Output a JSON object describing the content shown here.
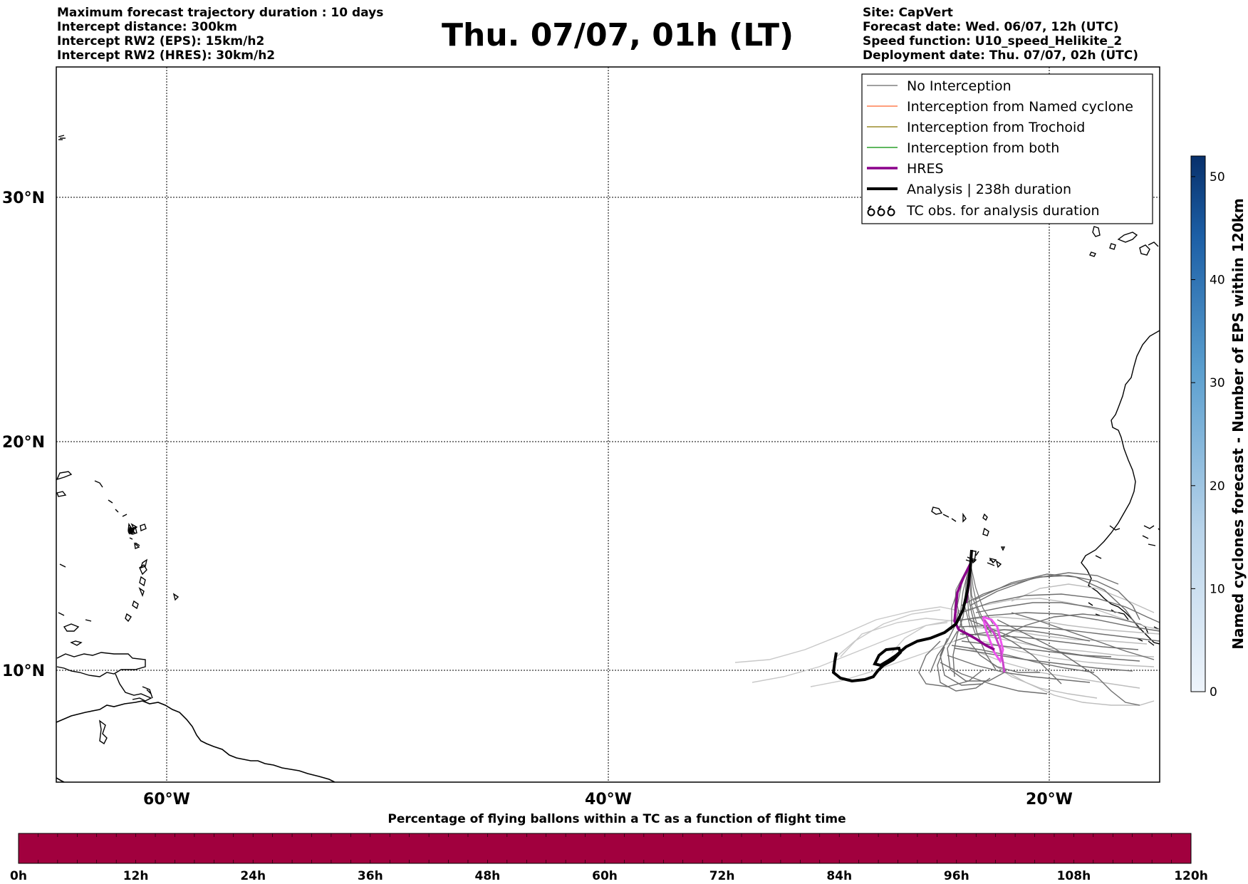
{
  "header_left": [
    "Maximum forecast trajectory duration : 10 days",
    "Intercept distance: 300km",
    "Intercept RW2 (EPS):  15km/h2",
    "Intercept RW2 (HRES): 30km/h2"
  ],
  "title": "Thu. 07/07, 01h (LT)",
  "header_right": [
    "Site: CapVert",
    "Forecast date: Wed. 06/07, 12h (UTC)",
    "Speed function: U10_speed_Helikite_2",
    "Deployment date: Thu. 07/07, 02h (UTC)"
  ],
  "map": {
    "lat_labels": [
      "30°N",
      "20°N",
      "10°N"
    ],
    "lon_labels": [
      "60°W",
      "40°W",
      "20°W"
    ]
  },
  "legend": {
    "position": "top-right",
    "items": [
      {
        "label": "No Interception",
        "color": "#808080"
      },
      {
        "label": "Interception from Named cyclone",
        "color": "#ff7f50"
      },
      {
        "label": "Interception from Trochoid",
        "color": "#9b8b2a"
      },
      {
        "label": "Interception from both",
        "color": "#2ca02c"
      },
      {
        "label": "HRES",
        "color": "#8b008b"
      },
      {
        "label": "Analysis | 238h duration",
        "color": "#000000"
      },
      {
        "label": "TC obs. for analysis duration",
        "color": "#000000",
        "symbol": "cyclone-symbol-icon"
      }
    ]
  },
  "colorbar_right": {
    "label": "Named cyclones forecast - Number of EPS within 120km",
    "ticks": [
      "0",
      "10",
      "20",
      "30",
      "40",
      "50"
    ],
    "range": [
      0,
      52
    ],
    "colors": [
      "#e9f1fb",
      "#08306b"
    ]
  },
  "colorbar_bottom": {
    "title": "Percentage of flying ballons within a TC as a function of flight time",
    "ticks": [
      "0h",
      "12h",
      "24h",
      "36h",
      "48h",
      "60h",
      "72h",
      "84h",
      "96h",
      "108h",
      "120h"
    ],
    "fill_color": "#a1003e"
  }
}
